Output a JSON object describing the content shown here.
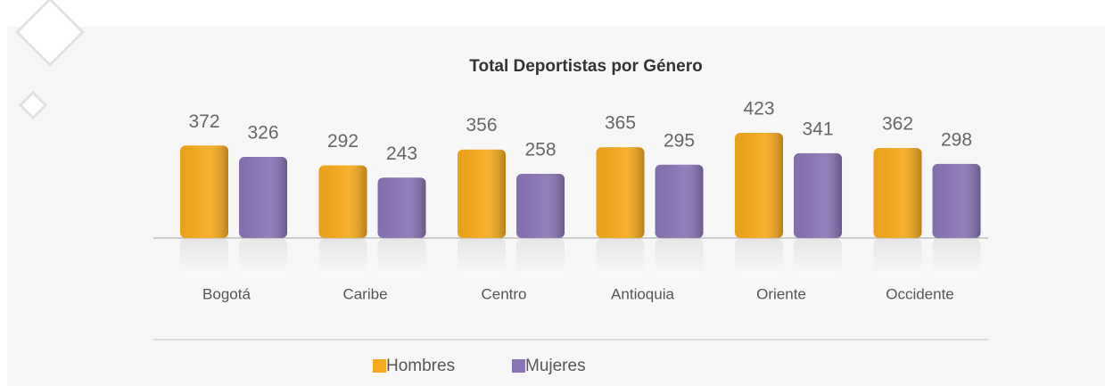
{
  "chart_data": {
    "type": "bar",
    "title": "Total Deportistas por Género",
    "categories": [
      "Bogotá",
      "Caribe",
      "Centro",
      "Antioquia",
      "Oriente",
      "Occidente"
    ],
    "series": [
      {
        "name": "Hombres",
        "color": "#f6a91c",
        "values": [
          372,
          292,
          356,
          365,
          423,
          362
        ]
      },
      {
        "name": "Mujeres",
        "color": "#8a74b5",
        "values": [
          326,
          243,
          258,
          295,
          341,
          298
        ]
      }
    ]
  }
}
